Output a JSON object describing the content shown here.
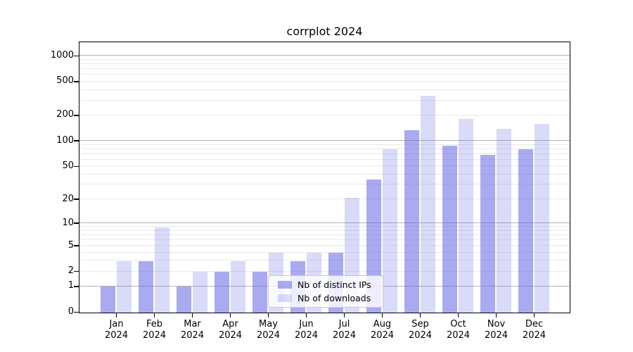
{
  "chart_data": {
    "type": "bar",
    "title": "corrplot 2024",
    "categories": [
      "Jan",
      "Feb",
      "Mar",
      "Apr",
      "May",
      "Jun",
      "Jul",
      "Aug",
      "Sep",
      "Oct",
      "Nov",
      "Dec"
    ],
    "x_year_label": "2024",
    "series": [
      {
        "name": "Nb of distinct IPs",
        "color": "rgba(100,100,230,0.55)",
        "values": [
          1,
          3,
          1,
          2,
          2,
          3,
          4,
          35,
          135,
          88,
          69,
          80
        ]
      },
      {
        "name": "Nb of downloads",
        "color": "rgba(100,100,230,0.24)",
        "values": [
          3,
          9,
          2,
          3,
          4,
          4,
          21,
          80,
          345,
          183,
          140,
          161
        ]
      }
    ],
    "yscale": "log1p",
    "yticks": [
      0,
      1,
      2,
      5,
      10,
      20,
      50,
      100,
      200,
      500,
      1000
    ],
    "major_gridlines": [
      1,
      10,
      100,
      1000
    ],
    "ylim": [
      0,
      1430
    ],
    "xlabel": "",
    "ylabel": "",
    "grid": "both",
    "legend_position": "lower-center"
  },
  "colors": {
    "bar_base": "#6464e6",
    "major_grid": "#b2b2b2",
    "minor_grid": "#e9e9e9",
    "axis": "#000000",
    "legend_border": "#cccccc",
    "background": "#ffffff"
  }
}
